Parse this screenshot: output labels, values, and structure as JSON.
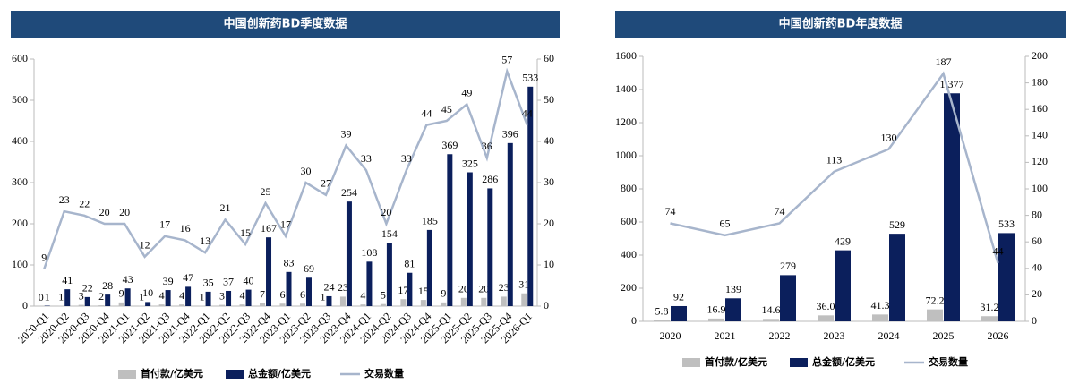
{
  "chart_data": [
    {
      "type": "bar-line",
      "title": "中国创新药BD季度数据",
      "categories": [
        "2020-Q1",
        "2020-Q2",
        "2020-Q3",
        "2020-Q4",
        "2021-Q1",
        "2021-Q2",
        "2021-Q3",
        "2021-Q4",
        "2022-Q1",
        "2022-Q2",
        "2022-Q3",
        "2022-Q4",
        "2023-Q1",
        "2023-Q2",
        "2023-Q3",
        "2023-Q4",
        "2024-Q1",
        "2024-Q2",
        "2024-Q3",
        "2024-Q4",
        "2025-Q1",
        "2025-Q2",
        "2025-Q3",
        "2025-Q4",
        "2026-Q1"
      ],
      "series": [
        {
          "name": "首付款/亿美元",
          "color": "#bfbfbf",
          "kind": "bar",
          "values": [
            0,
            1,
            3,
            2,
            9,
            1,
            4,
            4,
            1,
            3,
            4,
            7,
            6,
            6,
            1,
            23,
            4,
            5,
            17,
            15,
            9,
            20,
            20,
            23,
            31
          ]
        },
        {
          "name": "总金额/亿美元",
          "color": "#0b1f5c",
          "kind": "bar",
          "values": [
            1,
            41,
            22,
            28,
            43,
            10,
            39,
            47,
            35,
            37,
            40,
            167,
            83,
            69,
            24,
            254,
            108,
            154,
            81,
            185,
            369,
            325,
            286,
            396,
            533
          ]
        },
        {
          "name": "交易数量",
          "color": "#a7b5cc",
          "kind": "line",
          "axis": "y2",
          "values": [
            9,
            23,
            22,
            20,
            20,
            12,
            17,
            16,
            13,
            21,
            15,
            25,
            17,
            30,
            27,
            39,
            33,
            20,
            33,
            44,
            45,
            49,
            36,
            57,
            44
          ]
        }
      ],
      "ylim": [
        0,
        600
      ],
      "yticks": [
        0,
        100,
        200,
        300,
        400,
        500,
        600
      ],
      "y2lim": [
        0,
        60
      ],
      "y2ticks": [
        0,
        10,
        20,
        30,
        40,
        50,
        60
      ],
      "grid": false,
      "legend": "bottom"
    },
    {
      "type": "bar-line",
      "title": "中国创新药BD年度数据",
      "categories": [
        "2020",
        "2021",
        "2022",
        "2023",
        "2024",
        "2025",
        "2026"
      ],
      "series": [
        {
          "name": "首付款/亿美元",
          "color": "#bfbfbf",
          "kind": "bar",
          "values": [
            5.8,
            16.9,
            14.6,
            36,
            41.3,
            72.2,
            31.2
          ],
          "value_labels": [
            "5.8",
            "16.9",
            "14.6",
            "36.0",
            "41.3",
            "72.2",
            "31.2"
          ]
        },
        {
          "name": "总金额/亿美元",
          "color": "#0b1f5c",
          "kind": "bar",
          "values": [
            92,
            139,
            279,
            429,
            529,
            1377,
            533
          ],
          "value_labels": [
            "92",
            "139",
            "279",
            "429",
            "529",
            "1,377",
            "533"
          ]
        },
        {
          "name": "交易数量",
          "color": "#a7b5cc",
          "kind": "line",
          "axis": "y2",
          "values": [
            74,
            65,
            74,
            113,
            130,
            187,
            44
          ]
        }
      ],
      "ylim": [
        0,
        1600
      ],
      "yticks": [
        0,
        200,
        400,
        600,
        800,
        1000,
        1200,
        1400,
        1600
      ],
      "y2lim": [
        0,
        200
      ],
      "y2ticks": [
        0,
        20,
        40,
        60,
        80,
        100,
        120,
        140,
        160,
        180,
        200
      ],
      "grid": false,
      "legend": "bottom"
    }
  ]
}
